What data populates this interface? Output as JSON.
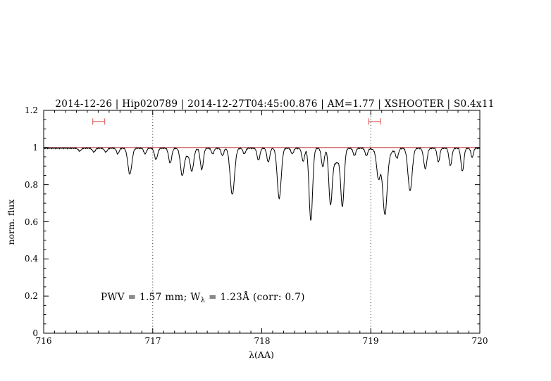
{
  "title": {
    "text": "2014-12-26 | Hip020789 | 2014-12-27T04:45:00.876 | AM=1.77 | XSHOOTER | S0.4x11",
    "color": "#0000cc"
  },
  "annotation": {
    "part1": "PWV = 1.57 mm; W",
    "sub": "λ",
    "part2": " = 1.23Å (corr: 0.7)",
    "color": "#0000cc"
  },
  "axes": {
    "xlabel": "λ(AA)",
    "ylabel": "norm. flux",
    "x_tick_labels": [
      "716",
      "717",
      "718",
      "719",
      "720"
    ],
    "y_tick_labels": [
      "0",
      "0.2",
      "0.4",
      "0.6",
      "0.8",
      "1",
      "1.2"
    ]
  },
  "chart_data": {
    "type": "line",
    "title": "2014-12-26 | Hip020789 | 2014-12-27T04:45:00.876 | AM=1.77 | XSHOOTER | S0.4x11",
    "xlabel": "λ(AA)",
    "ylabel": "norm. flux",
    "x_range": [
      716,
      720
    ],
    "y_range": [
      0,
      1.2
    ],
    "x_ticks": [
      716,
      717,
      718,
      719,
      720
    ],
    "y_ticks": [
      0,
      0.2,
      0.4,
      0.6,
      0.8,
      1,
      1.2
    ],
    "x_minor_step": 0.1,
    "y_minor_step": 0.05,
    "grid": false,
    "legend": false,
    "spectrum_color": "#000000",
    "continuum_level": 1.0,
    "continuum_color": "#bb2222",
    "dotted_guides_x": [
      717,
      719
    ],
    "guide_color": "#222222",
    "marker_color": "#dd6a6a",
    "range_markers": [
      {
        "x_start": 716.45,
        "x_end": 716.56,
        "y": 1.14
      },
      {
        "x_start": 718.98,
        "x_end": 719.09,
        "y": 1.14
      }
    ],
    "noise_amplitude": 0.008,
    "absorption_lines": [
      {
        "center": 716.33,
        "depth": 0.015,
        "sigma": 0.013
      },
      {
        "center": 716.46,
        "depth": 0.02,
        "sigma": 0.013
      },
      {
        "center": 716.57,
        "depth": 0.02,
        "sigma": 0.013
      },
      {
        "center": 716.68,
        "depth": 0.03,
        "sigma": 0.012
      },
      {
        "center": 716.79,
        "depth": 0.14,
        "sigma": 0.018
      },
      {
        "center": 716.93,
        "depth": 0.03,
        "sigma": 0.012
      },
      {
        "center": 717.03,
        "depth": 0.06,
        "sigma": 0.014
      },
      {
        "center": 717.16,
        "depth": 0.08,
        "sigma": 0.014
      },
      {
        "center": 717.27,
        "depth": 0.13,
        "sigma": 0.016
      },
      {
        "center": 717.32,
        "depth": 0.04,
        "sigma": 0.04
      },
      {
        "center": 717.36,
        "depth": 0.1,
        "sigma": 0.015
      },
      {
        "center": 717.45,
        "depth": 0.115,
        "sigma": 0.014
      },
      {
        "center": 717.55,
        "depth": 0.03,
        "sigma": 0.012
      },
      {
        "center": 717.64,
        "depth": 0.04,
        "sigma": 0.012
      },
      {
        "center": 717.73,
        "depth": 0.25,
        "sigma": 0.02
      },
      {
        "center": 717.84,
        "depth": 0.03,
        "sigma": 0.012
      },
      {
        "center": 717.97,
        "depth": 0.065,
        "sigma": 0.013
      },
      {
        "center": 718.06,
        "depth": 0.075,
        "sigma": 0.013
      },
      {
        "center": 718.16,
        "depth": 0.27,
        "sigma": 0.018
      },
      {
        "center": 718.28,
        "depth": 0.03,
        "sigma": 0.012
      },
      {
        "center": 718.38,
        "depth": 0.07,
        "sigma": 0.013
      },
      {
        "center": 718.45,
        "depth": 0.39,
        "sigma": 0.016
      },
      {
        "center": 718.56,
        "depth": 0.1,
        "sigma": 0.013
      },
      {
        "center": 718.63,
        "depth": 0.27,
        "sigma": 0.015
      },
      {
        "center": 718.68,
        "depth": 0.08,
        "sigma": 0.04
      },
      {
        "center": 718.74,
        "depth": 0.29,
        "sigma": 0.015
      },
      {
        "center": 718.85,
        "depth": 0.04,
        "sigma": 0.012
      },
      {
        "center": 718.96,
        "depth": 0.04,
        "sigma": 0.012
      },
      {
        "center": 719.07,
        "depth": 0.13,
        "sigma": 0.016
      },
      {
        "center": 719.12,
        "depth": 0.06,
        "sigma": 0.05
      },
      {
        "center": 719.13,
        "depth": 0.3,
        "sigma": 0.019
      },
      {
        "center": 719.24,
        "depth": 0.05,
        "sigma": 0.013
      },
      {
        "center": 719.36,
        "depth": 0.23,
        "sigma": 0.019
      },
      {
        "center": 719.5,
        "depth": 0.11,
        "sigma": 0.015
      },
      {
        "center": 719.62,
        "depth": 0.075,
        "sigma": 0.012
      },
      {
        "center": 719.73,
        "depth": 0.095,
        "sigma": 0.013
      },
      {
        "center": 719.84,
        "depth": 0.125,
        "sigma": 0.013
      },
      {
        "center": 719.93,
        "depth": 0.05,
        "sigma": 0.011
      }
    ]
  }
}
